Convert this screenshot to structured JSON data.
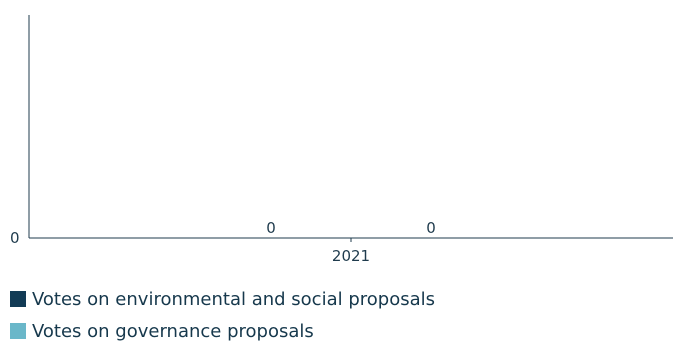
{
  "chart_data": {
    "type": "bar",
    "categories": [
      "2021"
    ],
    "series": [
      {
        "name": "Votes on environmental and social proposals",
        "values": [
          0
        ],
        "color": "#123b55"
      },
      {
        "name": "Votes on governance proposals",
        "values": [
          0
        ],
        "color": "#6ab7c9"
      }
    ],
    "y_ticks": [
      "0"
    ],
    "ylim": [
      0,
      1
    ],
    "data_labels": [
      "0",
      "0"
    ],
    "grid": false,
    "legend_position": "bottom-left"
  },
  "legend": {
    "items": [
      {
        "label": "Votes on environmental and social proposals",
        "color": "#123b55"
      },
      {
        "label": "Votes on governance proposals",
        "color": "#6ab7c9"
      }
    ]
  }
}
